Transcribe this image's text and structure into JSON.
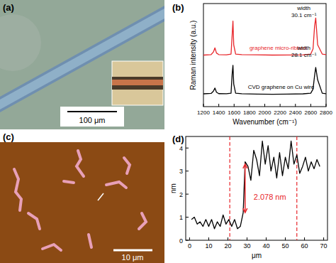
{
  "panels": {
    "a": {
      "label": "(a)",
      "scale_bar": "100 μm"
    },
    "c": {
      "label": "(c)",
      "scale_bar": "10 μm"
    }
  },
  "chart_data": [
    {
      "type": "line",
      "panel_label": "(b)",
      "x_label": "Wavenumber (cm⁻¹)",
      "y_label": "Raman intensity (a.u.)",
      "xlim": [
        1200,
        2800
      ],
      "xticks": [
        1200,
        1400,
        1600,
        1800,
        2000,
        2200,
        2400,
        2600,
        2800
      ],
      "ylim": [
        0,
        100
      ],
      "tick_labels": "x",
      "x": [
        1200,
        1300,
        1330,
        1350,
        1370,
        1400,
        1500,
        1560,
        1575,
        1585,
        1595,
        1620,
        1700,
        1900,
        2100,
        2300,
        2500,
        2600,
        2630,
        2650,
        2665,
        2690,
        2750,
        2800
      ],
      "series": [
        {
          "name": "graphene micro-ribben",
          "color": "#e8262b",
          "values": [
            50,
            50.5,
            53,
            57,
            52,
            50.5,
            50.3,
            51,
            70,
            83,
            60,
            51,
            50.4,
            50.2,
            50,
            50.1,
            50.3,
            51,
            56,
            78,
            86,
            60,
            51,
            50.4
          ]
        },
        {
          "name": "CVD graphene on Cu wire",
          "color": "#000000",
          "values": [
            12.4,
            12.8,
            15,
            18,
            14,
            12.6,
            12.5,
            13,
            32,
            40,
            22,
            13,
            12.5,
            12.2,
            12,
            12.2,
            12.4,
            13,
            17,
            30,
            38,
            26,
            13,
            12.5
          ]
        }
      ],
      "annotations": [
        {
          "lines": [
            "width",
            "30.1 cm⁻¹"
          ]
        },
        {
          "lines": [
            "width",
            "28.1 cm⁻¹"
          ]
        }
      ]
    },
    {
      "type": "line",
      "panel_label": "(d)",
      "x_label": "μm",
      "y_label": "nm",
      "xlim": [
        -2,
        72
      ],
      "xticks": [
        0,
        10,
        20,
        30,
        40,
        50,
        60,
        70
      ],
      "ylim": [
        0,
        4.5
      ],
      "yticks": [
        0,
        1,
        2,
        3,
        4
      ],
      "x": [
        1,
        2.5,
        4,
        5.5,
        7,
        8.5,
        10,
        11.5,
        13,
        14.5,
        16,
        17.5,
        19,
        20.5,
        22,
        23.5,
        25,
        26.5,
        28,
        29,
        30.5,
        32,
        33.5,
        35,
        36.5,
        38,
        39.5,
        41,
        42.5,
        44,
        45.5,
        47,
        48.5,
        50,
        51.5,
        53,
        54.5,
        56,
        57.5,
        59,
        60.5,
        62,
        63.5,
        65,
        66.5,
        68
      ],
      "series": [
        {
          "color": "#000000",
          "values": [
            0.9,
            1.0,
            0.7,
            0.8,
            0.6,
            0.9,
            0.6,
            0.9,
            0.5,
            0.8,
            0.6,
            1.1,
            0.7,
            0.9,
            0.6,
            0.9,
            0.5,
            0.6,
            1.2,
            3.4,
            3.2,
            2.6,
            3.9,
            3.5,
            2.8,
            4.3,
            3.3,
            4.1,
            3.0,
            3.6,
            2.7,
            3.8,
            2.8,
            3.6,
            3.1,
            4.3,
            3.3,
            3.7,
            2.9,
            3.2,
            3.6,
            3.0,
            3.4,
            3.1,
            3.5,
            3.2
          ]
        }
      ],
      "vlines": [
        {
          "value": 21,
          "color": "#e8262b",
          "line_style": "dashed"
        },
        {
          "value": 56,
          "color": "#e8262b",
          "line_style": "dashed"
        }
      ],
      "annotations": [
        {
          "text": "2.078 nm",
          "color": "#e8262b",
          "arrow": {
            "x": 29,
            "y_start": 3.3,
            "y_end": 1.2
          }
        }
      ]
    }
  ]
}
